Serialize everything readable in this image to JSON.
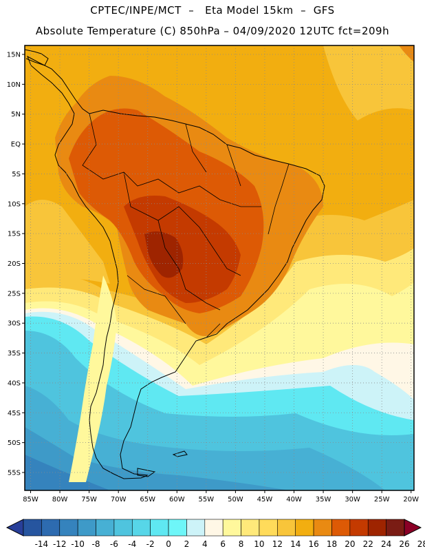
{
  "header": {
    "line1": "CPTEC/INPE/MCT  –   Eta Model 15km  –  GFS",
    "line2": "Absolute Temperature (C) 850hPa – 04/09/2020 12UTC fct=209h"
  },
  "axes": {
    "lat_labels": [
      "15N",
      "10N",
      "5N",
      "EQ",
      "5S",
      "10S",
      "15S",
      "20S",
      "25S",
      "30S",
      "35S",
      "40S",
      "45S",
      "50S",
      "55S"
    ],
    "lat_values": [
      15,
      10,
      5,
      0,
      -5,
      -10,
      -15,
      -20,
      -25,
      -30,
      -35,
      -40,
      -45,
      -50,
      -55
    ],
    "lon_labels": [
      "85W",
      "80W",
      "75W",
      "70W",
      "65W",
      "60W",
      "55W",
      "50W",
      "45W",
      "40W",
      "35W",
      "30W",
      "25W",
      "20W"
    ],
    "lon_values": [
      -85,
      -80,
      -75,
      -70,
      -65,
      -60,
      -55,
      -50,
      -45,
      -40,
      -35,
      -30,
      -25,
      -20
    ],
    "lat_range": [
      -58,
      16.5
    ],
    "lon_range": [
      -86,
      -19.5
    ]
  },
  "colorbar": {
    "levels": [
      "-14",
      "-12",
      "-10",
      "-8",
      "-6",
      "-4",
      "-2",
      "0",
      "2",
      "4",
      "6",
      "8",
      "10",
      "12",
      "14",
      "16",
      "18",
      "20",
      "22",
      "24",
      "26",
      "28"
    ],
    "colors": [
      "#1d3f8c",
      "#26559f",
      "#2d6bb0",
      "#3583bd",
      "#3e9ac8",
      "#47b0d4",
      "#4fc4de",
      "#57d6e8",
      "#5fe8f2",
      "#6ef6f8",
      "#cdf3f8",
      "#fff7e6",
      "#fff89c",
      "#ffe97a",
      "#ffdb5a",
      "#f8c53a",
      "#f2ae10",
      "#e98a12",
      "#dd5a05",
      "#c43a00",
      "#9e2400",
      "#7a1c14",
      "#8b0026"
    ]
  },
  "fields": {
    "ocean_bands": [
      {
        "name": "tropics",
        "color": "#f2ae10"
      },
      {
        "name": "subtropics-yellow",
        "color": "#f8c53a"
      },
      {
        "name": "light-yellow",
        "color": "#ffe97a"
      },
      {
        "name": "pale",
        "color": "#fff89c"
      },
      {
        "name": "cream",
        "color": "#fff7e6"
      },
      {
        "name": "ice",
        "color": "#cdf3f8"
      },
      {
        "name": "cyan",
        "color": "#5fe8f2"
      },
      {
        "name": "teal",
        "color": "#4fc4de"
      },
      {
        "name": "blue",
        "color": "#3e9ac8"
      }
    ],
    "land_hot": "#dd5a05",
    "land_hotter": "#c43a00",
    "land_warm": "#e98a12"
  }
}
